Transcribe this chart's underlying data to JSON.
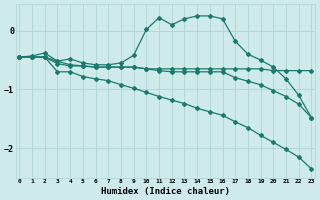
{
  "xlabel": "Humidex (Indice chaleur)",
  "background_color": "#ceeaea",
  "grid_color": "#b0d4d4",
  "line_color": "#1a7a6e",
  "x_ticks": [
    0,
    1,
    2,
    3,
    4,
    5,
    6,
    7,
    8,
    9,
    10,
    11,
    12,
    13,
    14,
    15,
    16,
    17,
    18,
    19,
    20,
    21,
    22,
    23
  ],
  "ylim": [
    -2.5,
    0.45
  ],
  "xlim": [
    -0.3,
    23.3
  ],
  "series": [
    {
      "x": [
        0,
        1,
        2,
        3,
        4,
        5,
        6,
        7,
        8,
        9,
        10,
        11,
        12,
        13,
        14,
        15,
        16,
        17,
        18,
        19,
        20,
        21,
        22,
        23
      ],
      "y": [
        -0.45,
        -0.43,
        -0.38,
        -0.52,
        -0.48,
        -0.55,
        -0.58,
        -0.58,
        -0.55,
        -0.42,
        0.02,
        0.22,
        0.1,
        0.2,
        0.25,
        0.25,
        0.2,
        -0.18,
        -0.4,
        -0.5,
        -0.62,
        -0.82,
        -1.1,
        -1.48
      ]
    },
    {
      "x": [
        0,
        1,
        2,
        3,
        4,
        5,
        6,
        7,
        8,
        9,
        10,
        11,
        12,
        13,
        14,
        15,
        16,
        17,
        18,
        19,
        20,
        21,
        22,
        23
      ],
      "y": [
        -0.45,
        -0.45,
        -0.45,
        -0.52,
        -0.58,
        -0.6,
        -0.62,
        -0.62,
        -0.62,
        -0.62,
        -0.65,
        -0.65,
        -0.65,
        -0.65,
        -0.65,
        -0.65,
        -0.65,
        -0.65,
        -0.65,
        -0.65,
        -0.68,
        -0.68,
        -0.68,
        -0.68
      ]
    },
    {
      "x": [
        0,
        1,
        2,
        3,
        4,
        5,
        6,
        7,
        8,
        9,
        10,
        11,
        12,
        13,
        14,
        15,
        16,
        17,
        18,
        19,
        20,
        21,
        22,
        23
      ],
      "y": [
        -0.45,
        -0.45,
        -0.45,
        -0.56,
        -0.6,
        -0.6,
        -0.62,
        -0.62,
        -0.62,
        -0.62,
        -0.65,
        -0.68,
        -0.7,
        -0.7,
        -0.7,
        -0.7,
        -0.7,
        -0.8,
        -0.86,
        -0.92,
        -1.02,
        -1.12,
        -1.25,
        -1.48
      ]
    },
    {
      "x": [
        0,
        1,
        2,
        3,
        4,
        5,
        6,
        7,
        8,
        9,
        10,
        11,
        12,
        13,
        14,
        15,
        16,
        17,
        18,
        19,
        20,
        21,
        22,
        23
      ],
      "y": [
        -0.45,
        -0.45,
        -0.45,
        -0.7,
        -0.7,
        -0.78,
        -0.82,
        -0.85,
        -0.92,
        -0.98,
        -1.05,
        -1.12,
        -1.18,
        -1.24,
        -1.32,
        -1.38,
        -1.44,
        -1.55,
        -1.65,
        -1.78,
        -1.9,
        -2.02,
        -2.15,
        -2.35
      ]
    }
  ]
}
